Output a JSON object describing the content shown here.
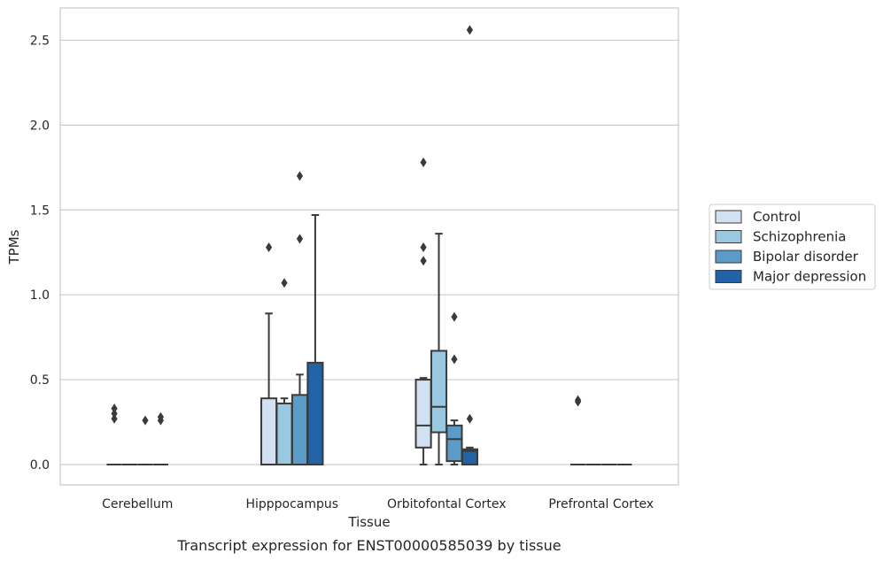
{
  "caption": "Transcript expression for ENST00000585039 by tissue",
  "chart_data": {
    "type": "boxplot",
    "xlabel": "Tissue",
    "ylabel": "TPMs",
    "ylim": [
      -0.12,
      2.69
    ],
    "yticks": [
      "0.0",
      "0.5",
      "1.0",
      "1.5",
      "2.0",
      "2.5"
    ],
    "grid": "horizontal",
    "legend_position": "right",
    "categories": [
      "Cerebellum",
      "Hipppocampus",
      "Orbitofontal Cortex",
      "Prefrontal Cortex"
    ],
    "series": [
      {
        "name": "Control",
        "color": "#d1e1f1",
        "boxes": [
          {
            "min": 0,
            "q1": 0,
            "median": 0,
            "q3": 0,
            "max": 0,
            "outliers": [
              0.27,
              0.3,
              0.33
            ]
          },
          {
            "min": 0,
            "q1": 0,
            "median": 0,
            "q3": 0.39,
            "max": 0.89,
            "outliers": [
              1.28
            ]
          },
          {
            "min": 0,
            "q1": 0.1,
            "median": 0.23,
            "q3": 0.5,
            "max": 0.51,
            "outliers": [
              1.2,
              1.28,
              1.78
            ]
          },
          {
            "min": 0,
            "q1": 0,
            "median": 0,
            "q3": 0,
            "max": 0,
            "outliers": [
              0.37,
              0.38
            ]
          }
        ]
      },
      {
        "name": "Schizophrenia",
        "color": "#9ac8e0",
        "boxes": [
          {
            "min": 0,
            "q1": 0,
            "median": 0,
            "q3": 0,
            "max": 0,
            "outliers": []
          },
          {
            "min": 0,
            "q1": 0,
            "median": 0,
            "q3": 0.36,
            "max": 0.39,
            "outliers": [
              1.07
            ]
          },
          {
            "min": 0,
            "q1": 0.19,
            "median": 0.34,
            "q3": 0.67,
            "max": 1.36,
            "outliers": []
          },
          {
            "min": 0,
            "q1": 0,
            "median": 0,
            "q3": 0,
            "max": 0,
            "outliers": []
          }
        ]
      },
      {
        "name": "Bipolar disorder",
        "color": "#5a9bc8",
        "boxes": [
          {
            "min": 0,
            "q1": 0,
            "median": 0,
            "q3": 0,
            "max": 0,
            "outliers": [
              0.26
            ]
          },
          {
            "min": 0,
            "q1": 0,
            "median": 0,
            "q3": 0.41,
            "max": 0.53,
            "outliers": [
              1.33,
              1.7
            ]
          },
          {
            "min": 0,
            "q1": 0.02,
            "median": 0.15,
            "q3": 0.23,
            "max": 0.26,
            "outliers": [
              0.62,
              0.87
            ]
          },
          {
            "min": 0,
            "q1": 0,
            "median": 0,
            "q3": 0,
            "max": 0,
            "outliers": []
          }
        ]
      },
      {
        "name": "Major depression",
        "color": "#2262a6",
        "boxes": [
          {
            "min": 0,
            "q1": 0,
            "median": 0,
            "q3": 0,
            "max": 0,
            "outliers": [
              0.26,
              0.28
            ]
          },
          {
            "min": 0,
            "q1": 0,
            "median": 0,
            "q3": 0.6,
            "max": 1.47,
            "outliers": []
          },
          {
            "min": 0,
            "q1": 0,
            "median": 0.08,
            "q3": 0.09,
            "max": 0.1,
            "outliers": [
              0.27,
              2.56
            ]
          },
          {
            "min": 0,
            "q1": 0,
            "median": 0,
            "q3": 0,
            "max": 0,
            "outliers": []
          }
        ]
      }
    ]
  }
}
